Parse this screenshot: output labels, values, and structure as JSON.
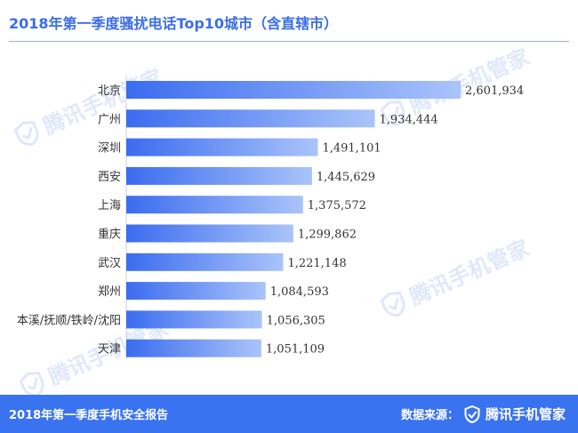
{
  "title": "2018年第一季度骚扰电话Top10城市（含直辖市）",
  "watermark_text": "腾讯手机管家",
  "footer": {
    "report_name": "2018年第一季度手机安全报告",
    "source_label": "数据来源：",
    "brand": "腾讯手机管家"
  },
  "colors": {
    "accent": "#3a73f0",
    "bar_start": "#3b6cf0",
    "bar_end": "#aac4fa"
  },
  "chart_data": {
    "type": "bar",
    "orientation": "horizontal",
    "categories": [
      "北京",
      "广州",
      "深圳",
      "西安",
      "上海",
      "重庆",
      "武汉",
      "郑州",
      "本溪/抚顺/铁岭/沈阳",
      "天津"
    ],
    "values": [
      2601934,
      1934444,
      1491101,
      1445629,
      1375572,
      1299862,
      1221148,
      1084593,
      1056305,
      1051109
    ],
    "value_labels": [
      "2,601,934",
      "1,934,444",
      "1,491,101",
      "1,445,629",
      "1,375,572",
      "1,299,862",
      "1,221,148",
      "1,084,593",
      "1,056,305",
      "1,051,109"
    ],
    "xlim": [
      0,
      2601934
    ],
    "grid": false,
    "legend": "none",
    "title": "2018年第一季度骚扰电话Top10城市（含直辖市）",
    "xlabel": "",
    "ylabel": ""
  }
}
